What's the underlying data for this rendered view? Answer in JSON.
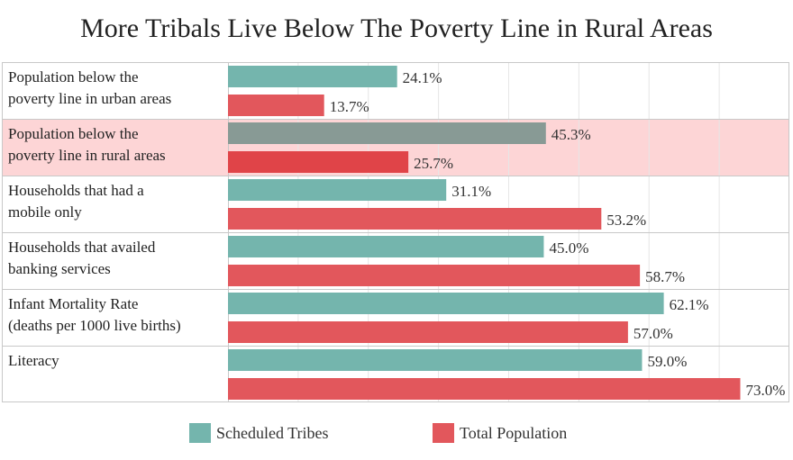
{
  "chart_data": {
    "type": "bar",
    "orientation": "horizontal",
    "title": "More Tribals Live Below The Poverty Line in Rural Areas",
    "categories": [
      [
        "Population below the",
        "poverty line in urban areas"
      ],
      [
        "Population below the",
        "poverty line in rural areas"
      ],
      [
        "Households that had a",
        "mobile only"
      ],
      [
        "Households that availed",
        "banking services"
      ],
      [
        "Infant Mortality Rate",
        "(deaths per 1000 live births)"
      ],
      [
        "Literacy"
      ]
    ],
    "highlighted_category": 1,
    "series": [
      {
        "name": "Scheduled Tribes",
        "color": "#74b5ad",
        "highlight_color": "#889a95",
        "values": [
          24.1,
          45.3,
          31.1,
          45.0,
          62.1,
          59.0
        ],
        "labels": [
          "24.1%",
          "45.3%",
          "31.1%",
          "45.0%",
          "62.1%",
          "59.0%"
        ]
      },
      {
        "name": "Total Population",
        "color": "#e2575c",
        "highlight_color": "#e04448",
        "values": [
          13.7,
          25.7,
          53.2,
          58.7,
          57.0,
          73.0
        ],
        "labels": [
          "13.7%",
          "25.7%",
          "53.2%",
          "58.7%",
          "57.0%",
          "73.0%"
        ]
      }
    ],
    "xlim": [
      0,
      80
    ],
    "grid": true,
    "legend_position": "bottom",
    "highlight_band_color": "#fdd5d6",
    "grid_color": "#e6e6e6",
    "row_divider_color": "#c8c8c8"
  }
}
